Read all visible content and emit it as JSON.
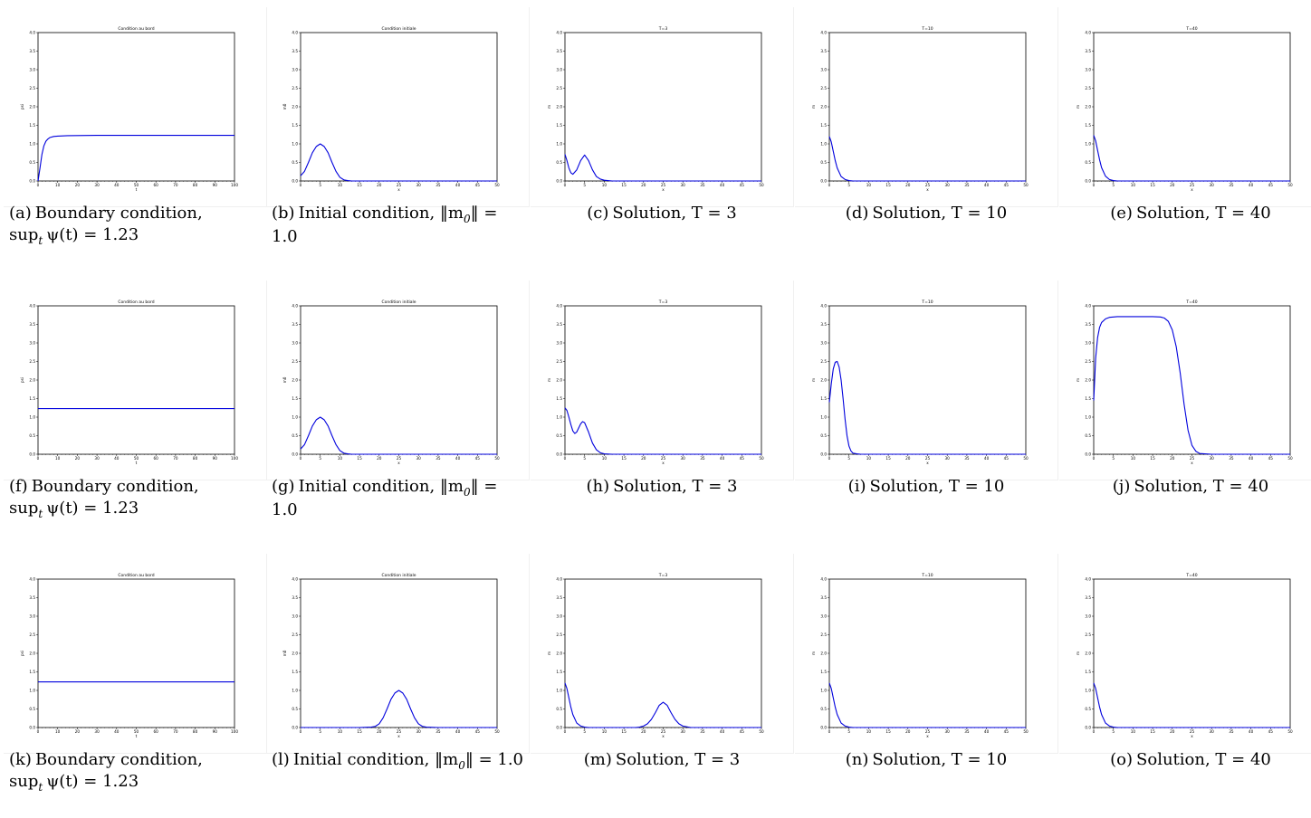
{
  "chart_data": [
    {
      "id": "a",
      "type": "line",
      "title": "Condition au bord",
      "xlabel": "t",
      "ylabel": "psi",
      "xlim": [
        0,
        100
      ],
      "ylim": [
        0,
        4
      ],
      "xticks": [
        0,
        10,
        20,
        30,
        40,
        50,
        60,
        70,
        80,
        90,
        100
      ],
      "yticks": [
        0,
        0.5,
        1,
        1.5,
        2,
        2.5,
        3,
        3.5,
        4
      ],
      "series": [
        {
          "x": [
            0,
            1,
            2,
            3,
            4,
            5,
            6,
            8,
            10,
            15,
            20,
            30,
            40,
            50,
            60,
            70,
            80,
            90,
            100
          ],
          "y": [
            0,
            0.35,
            0.72,
            0.95,
            1.07,
            1.13,
            1.17,
            1.2,
            1.21,
            1.22,
            1.225,
            1.23,
            1.23,
            1.23,
            1.23,
            1.23,
            1.23,
            1.23,
            1.23
          ]
        }
      ]
    },
    {
      "id": "b",
      "type": "line",
      "title": "Condition initiale",
      "xlabel": "x",
      "ylabel": "m0",
      "xlim": [
        0,
        50
      ],
      "ylim": [
        0,
        4
      ],
      "xticks": [
        0,
        5,
        10,
        15,
        20,
        25,
        30,
        35,
        40,
        45,
        50
      ],
      "yticks": [
        0,
        0.5,
        1,
        1.5,
        2,
        2.5,
        3,
        3.5,
        4
      ],
      "series": [
        {
          "x": [
            0,
            1,
            2,
            3,
            4,
            5,
            6,
            7,
            8,
            9,
            10,
            11,
            12,
            13,
            14,
            15,
            20,
            30,
            40,
            50
          ],
          "y": [
            0.14,
            0.26,
            0.5,
            0.76,
            0.93,
            1.0,
            0.93,
            0.76,
            0.5,
            0.26,
            0.1,
            0.03,
            0.01,
            0,
            0,
            0,
            0,
            0,
            0,
            0
          ]
        }
      ]
    },
    {
      "id": "c",
      "type": "line",
      "title": "T=3",
      "xlabel": "x",
      "ylabel": "m",
      "xlim": [
        0,
        50
      ],
      "ylim": [
        0,
        4
      ],
      "xticks": [
        0,
        5,
        10,
        15,
        20,
        25,
        30,
        35,
        40,
        45,
        50
      ],
      "yticks": [
        0,
        0.5,
        1,
        1.5,
        2,
        2.5,
        3,
        3.5,
        4
      ],
      "series": [
        {
          "x": [
            0,
            0.5,
            1,
            1.5,
            2,
            3,
            4,
            5,
            6,
            7,
            8,
            9,
            10,
            12,
            15,
            20,
            30,
            40,
            50
          ],
          "y": [
            0.72,
            0.55,
            0.35,
            0.22,
            0.18,
            0.3,
            0.55,
            0.7,
            0.55,
            0.3,
            0.12,
            0.05,
            0.02,
            0,
            0,
            0,
            0,
            0,
            0
          ]
        }
      ]
    },
    {
      "id": "d",
      "type": "line",
      "title": "T=10",
      "xlabel": "x",
      "ylabel": "m",
      "xlim": [
        0,
        50
      ],
      "ylim": [
        0,
        4
      ],
      "xticks": [
        0,
        5,
        10,
        15,
        20,
        25,
        30,
        35,
        40,
        45,
        50
      ],
      "yticks": [
        0,
        0.5,
        1,
        1.5,
        2,
        2.5,
        3,
        3.5,
        4
      ],
      "series": [
        {
          "x": [
            0,
            0.5,
            1,
            1.5,
            2,
            3,
            4,
            5,
            6,
            8,
            10,
            20,
            30,
            40,
            50
          ],
          "y": [
            1.2,
            1.05,
            0.8,
            0.55,
            0.35,
            0.12,
            0.04,
            0.01,
            0,
            0,
            0,
            0,
            0,
            0,
            0
          ]
        }
      ]
    },
    {
      "id": "e",
      "type": "line",
      "title": "T=40",
      "xlabel": "x",
      "ylabel": "m",
      "xlim": [
        0,
        50
      ],
      "ylim": [
        0,
        4
      ],
      "xticks": [
        0,
        5,
        10,
        15,
        20,
        25,
        30,
        35,
        40,
        45,
        50
      ],
      "yticks": [
        0,
        0.5,
        1,
        1.5,
        2,
        2.5,
        3,
        3.5,
        4
      ],
      "series": [
        {
          "x": [
            0,
            0.5,
            1,
            1.5,
            2,
            3,
            4,
            5,
            6,
            8,
            10,
            20,
            30,
            40,
            50
          ],
          "y": [
            1.23,
            1.08,
            0.82,
            0.57,
            0.36,
            0.13,
            0.04,
            0.01,
            0,
            0,
            0,
            0,
            0,
            0,
            0
          ]
        }
      ]
    },
    {
      "id": "f",
      "type": "line",
      "title": "Condition au bord",
      "xlabel": "t",
      "ylabel": "psi",
      "xlim": [
        0,
        100
      ],
      "ylim": [
        0,
        4
      ],
      "xticks": [
        0,
        10,
        20,
        30,
        40,
        50,
        60,
        70,
        80,
        90,
        100
      ],
      "yticks": [
        0,
        0.5,
        1,
        1.5,
        2,
        2.5,
        3,
        3.5,
        4
      ],
      "series": [
        {
          "x": [
            0,
            100
          ],
          "y": [
            1.23,
            1.23
          ]
        }
      ]
    },
    {
      "id": "g",
      "type": "line",
      "title": "Condition initiale",
      "xlabel": "x",
      "ylabel": "m0",
      "xlim": [
        0,
        50
      ],
      "ylim": [
        0,
        4
      ],
      "xticks": [
        0,
        5,
        10,
        15,
        20,
        25,
        30,
        35,
        40,
        45,
        50
      ],
      "yticks": [
        0,
        0.5,
        1,
        1.5,
        2,
        2.5,
        3,
        3.5,
        4
      ],
      "series": [
        {
          "x": [
            0,
            1,
            2,
            3,
            4,
            5,
            6,
            7,
            8,
            9,
            10,
            11,
            12,
            13,
            14,
            15,
            20,
            30,
            40,
            50
          ],
          "y": [
            0.14,
            0.26,
            0.5,
            0.76,
            0.93,
            1.0,
            0.93,
            0.76,
            0.5,
            0.26,
            0.1,
            0.03,
            0.01,
            0,
            0,
            0,
            0,
            0,
            0,
            0
          ]
        }
      ]
    },
    {
      "id": "h",
      "type": "line",
      "title": "T=3",
      "xlabel": "x",
      "ylabel": "m",
      "xlim": [
        0,
        50
      ],
      "ylim": [
        0,
        4
      ],
      "xticks": [
        0,
        5,
        10,
        15,
        20,
        25,
        30,
        35,
        40,
        45,
        50
      ],
      "yticks": [
        0,
        0.5,
        1,
        1.5,
        2,
        2.5,
        3,
        3.5,
        4
      ],
      "series": [
        {
          "x": [
            0,
            0.5,
            1,
            1.5,
            2,
            2.5,
            3,
            4,
            4.5,
            5,
            6,
            7,
            8,
            9,
            10,
            12,
            15,
            20,
            30,
            40,
            50
          ],
          "y": [
            1.25,
            1.18,
            1.0,
            0.8,
            0.63,
            0.56,
            0.6,
            0.82,
            0.88,
            0.85,
            0.6,
            0.3,
            0.12,
            0.04,
            0.01,
            0,
            0,
            0,
            0,
            0,
            0
          ]
        }
      ]
    },
    {
      "id": "i",
      "type": "line",
      "title": "T=10",
      "xlabel": "x",
      "ylabel": "m",
      "xlim": [
        0,
        50
      ],
      "ylim": [
        0,
        4
      ],
      "xticks": [
        0,
        5,
        10,
        15,
        20,
        25,
        30,
        35,
        40,
        45,
        50
      ],
      "yticks": [
        0,
        0.5,
        1,
        1.5,
        2,
        2.5,
        3,
        3.5,
        4
      ],
      "series": [
        {
          "x": [
            0,
            0.5,
            1,
            1.5,
            2,
            2.5,
            3,
            3.5,
            4,
            4.5,
            5,
            5.5,
            6,
            7,
            8,
            10,
            15,
            20,
            30,
            40,
            50
          ],
          "y": [
            1.4,
            1.9,
            2.3,
            2.48,
            2.5,
            2.35,
            2.0,
            1.5,
            0.95,
            0.5,
            0.22,
            0.09,
            0.03,
            0.01,
            0,
            0,
            0,
            0,
            0,
            0,
            0
          ]
        }
      ]
    },
    {
      "id": "j",
      "type": "line",
      "title": "T=40",
      "xlabel": "x",
      "ylabel": "m",
      "xlim": [
        0,
        50
      ],
      "ylim": [
        0,
        4
      ],
      "xticks": [
        0,
        5,
        10,
        15,
        20,
        25,
        30,
        35,
        40,
        45,
        50
      ],
      "yticks": [
        0,
        0.5,
        1,
        1.5,
        2,
        2.5,
        3,
        3.5,
        4
      ],
      "series": [
        {
          "x": [
            0,
            0.5,
            1,
            1.5,
            2,
            3,
            4,
            5,
            6,
            8,
            10,
            12,
            15,
            17,
            18,
            19,
            20,
            21,
            22,
            23,
            24,
            25,
            26,
            27,
            30,
            40,
            50
          ],
          "y": [
            1.45,
            2.6,
            3.15,
            3.42,
            3.55,
            3.65,
            3.69,
            3.7,
            3.71,
            3.71,
            3.71,
            3.71,
            3.71,
            3.7,
            3.67,
            3.58,
            3.35,
            2.9,
            2.2,
            1.35,
            0.65,
            0.24,
            0.08,
            0.02,
            0,
            0,
            0
          ]
        }
      ]
    },
    {
      "id": "k",
      "type": "line",
      "title": "Condition au bord",
      "xlabel": "t",
      "ylabel": "psi",
      "xlim": [
        0,
        100
      ],
      "ylim": [
        0,
        4
      ],
      "xticks": [
        0,
        10,
        20,
        30,
        40,
        50,
        60,
        70,
        80,
        90,
        100
      ],
      "yticks": [
        0,
        0.5,
        1,
        1.5,
        2,
        2.5,
        3,
        3.5,
        4
      ],
      "series": [
        {
          "x": [
            0,
            100
          ],
          "y": [
            1.23,
            1.23
          ]
        }
      ]
    },
    {
      "id": "l",
      "type": "line",
      "title": "Condition initiale",
      "xlabel": "x",
      "ylabel": "m0",
      "xlim": [
        0,
        50
      ],
      "ylim": [
        0,
        4
      ],
      "xticks": [
        0,
        5,
        10,
        15,
        20,
        25,
        30,
        35,
        40,
        45,
        50
      ],
      "yticks": [
        0,
        0.5,
        1,
        1.5,
        2,
        2.5,
        3,
        3.5,
        4
      ],
      "series": [
        {
          "x": [
            0,
            15,
            18,
            19,
            20,
            21,
            22,
            23,
            24,
            25,
            26,
            27,
            28,
            29,
            30,
            31,
            32,
            35,
            40,
            50
          ],
          "y": [
            0,
            0,
            0.01,
            0.03,
            0.1,
            0.26,
            0.5,
            0.76,
            0.93,
            1.0,
            0.93,
            0.76,
            0.5,
            0.26,
            0.1,
            0.03,
            0.01,
            0,
            0,
            0
          ]
        }
      ]
    },
    {
      "id": "m",
      "type": "line",
      "title": "T=3",
      "xlabel": "x",
      "ylabel": "m",
      "xlim": [
        0,
        50
      ],
      "ylim": [
        0,
        4
      ],
      "xticks": [
        0,
        5,
        10,
        15,
        20,
        25,
        30,
        35,
        40,
        45,
        50
      ],
      "yticks": [
        0,
        0.5,
        1,
        1.5,
        2,
        2.5,
        3,
        3.5,
        4
      ],
      "series": [
        {
          "x": [
            0,
            0.5,
            1,
            1.5,
            2,
            3,
            4,
            5,
            6,
            8,
            18,
            19,
            20,
            21,
            22,
            23,
            24,
            25,
            26,
            27,
            28,
            29,
            30,
            32,
            35,
            40,
            50
          ],
          "y": [
            1.2,
            1.05,
            0.8,
            0.55,
            0.35,
            0.12,
            0.04,
            0.01,
            0,
            0,
            0,
            0.01,
            0.04,
            0.1,
            0.22,
            0.4,
            0.6,
            0.68,
            0.6,
            0.4,
            0.22,
            0.1,
            0.04,
            0,
            0,
            0,
            0
          ]
        }
      ]
    },
    {
      "id": "n",
      "type": "line",
      "title": "T=10",
      "xlabel": "x",
      "ylabel": "m",
      "xlim": [
        0,
        50
      ],
      "ylim": [
        0,
        4
      ],
      "xticks": [
        0,
        5,
        10,
        15,
        20,
        25,
        30,
        35,
        40,
        45,
        50
      ],
      "yticks": [
        0,
        0.5,
        1,
        1.5,
        2,
        2.5,
        3,
        3.5,
        4
      ],
      "series": [
        {
          "x": [
            0,
            0.5,
            1,
            1.5,
            2,
            3,
            4,
            5,
            6,
            8,
            10,
            20,
            30,
            40,
            50
          ],
          "y": [
            1.2,
            1.05,
            0.8,
            0.55,
            0.35,
            0.12,
            0.04,
            0.01,
            0,
            0,
            0,
            0,
            0,
            0,
            0
          ]
        }
      ]
    },
    {
      "id": "o",
      "type": "line",
      "title": "T=40",
      "xlabel": "x",
      "ylabel": "m",
      "xlim": [
        0,
        50
      ],
      "ylim": [
        0,
        4
      ],
      "xticks": [
        0,
        5,
        10,
        15,
        20,
        25,
        30,
        35,
        40,
        45,
        50
      ],
      "yticks": [
        0,
        0.5,
        1,
        1.5,
        2,
        2.5,
        3,
        3.5,
        4
      ],
      "series": [
        {
          "x": [
            0,
            0.5,
            1,
            1.5,
            2,
            3,
            4,
            5,
            6,
            8,
            10,
            20,
            30,
            40,
            50
          ],
          "y": [
            1.2,
            1.05,
            0.8,
            0.55,
            0.35,
            0.12,
            0.04,
            0.01,
            0,
            0,
            0,
            0,
            0,
            0,
            0
          ]
        }
      ]
    }
  ],
  "captions": {
    "a": {
      "label": "(a)",
      "text": "Boundary condition,",
      "line2": "sup",
      "sub": "t",
      "expr": "ψ(t) = 1.23"
    },
    "b": {
      "label": "(b)",
      "text": "Initial condition, ‖m",
      "sub": "0",
      "tail": "‖ = 1.0"
    },
    "c": {
      "label": "(c)",
      "text": "Solution, T = 3"
    },
    "d": {
      "label": "(d)",
      "text": "Solution, T = 10"
    },
    "e": {
      "label": "(e)",
      "text": "Solution, T = 40"
    },
    "f": {
      "label": "(f)",
      "text": "Boundary condition,",
      "line2": "sup",
      "sub": "t",
      "expr": "ψ(t) = 1.23"
    },
    "g": {
      "label": "(g)",
      "text": "Initial condition, ‖m",
      "sub": "0",
      "tail": "‖ = 1.0"
    },
    "h": {
      "label": "(h)",
      "text": "Solution, T = 3"
    },
    "i": {
      "label": "(i)",
      "text": "Solution, T = 10"
    },
    "j": {
      "label": "(j)",
      "text": "Solution, T = 40"
    },
    "k": {
      "label": "(k)",
      "text": "Boundary condition,",
      "line2": "sup",
      "sub": "t",
      "expr": "ψ(t) = 1.23"
    },
    "l": {
      "label": "(l)",
      "text": "Initial condition, ‖m",
      "sub": "0",
      "tail": "‖ = 1.0"
    },
    "m": {
      "label": "(m)",
      "text": "Solution, T = 3"
    },
    "n": {
      "label": "(n)",
      "text": "Solution, T = 10"
    },
    "o": {
      "label": "(o)",
      "text": "Solution, T = 40"
    }
  },
  "colors": {
    "line": "#0000dd",
    "axis": "#000000"
  }
}
